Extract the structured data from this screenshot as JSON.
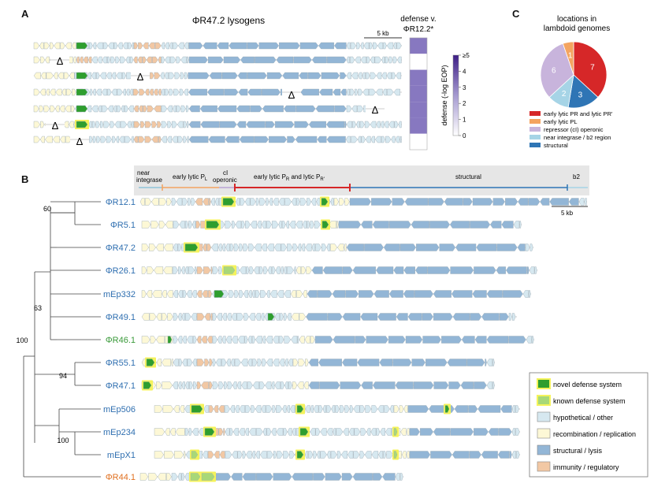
{
  "colors": {
    "novel": "#2e9e2e",
    "known": "#a8d878",
    "hypothetical": "#d6e8f0",
    "recombination": "#fdf8d6",
    "structural": "#93b6d6",
    "immunity": "#f2c8a4",
    "highlight": "#f4f35a",
    "early_lytic": "#d62728",
    "early_pl": "#f4a460",
    "repressor": "#c8b4dc",
    "near_integrase": "#a6d4e6",
    "structural_pie": "#2f75b5",
    "heat_high": "#8778c0"
  },
  "panel_a": {
    "letter": "A",
    "title": "ΦR47.2 lysogens",
    "scale": "5 kb",
    "delta": "Δ",
    "defense_title_line1": "defense v.",
    "defense_title_line2": "ΦR12.2*",
    "colorbar_ticks": [
      "≥5",
      "4",
      "3",
      "2",
      "1",
      "0"
    ],
    "colorbar_label": "defense (-log EOP)",
    "heat_values": [
      5,
      0,
      5,
      5,
      5,
      5,
      0
    ]
  },
  "panel_b": {
    "letter": "B",
    "regions": [
      "near integrase",
      "early lytic PL",
      "cI operonic",
      "early lytic PR and lytic PR'",
      "structural",
      "b2"
    ],
    "scale": "5 kb",
    "bootstrap": [
      "60",
      "63",
      "100",
      "94",
      "100"
    ],
    "phages": [
      {
        "name": "ΦR12.1",
        "color": "#2f6fb0"
      },
      {
        "name": "ΦR5.1",
        "color": "#2f6fb0"
      },
      {
        "name": "ΦR47.2",
        "color": "#2f6fb0"
      },
      {
        "name": "ΦR26.1",
        "color": "#2f6fb0"
      },
      {
        "name": "mEp332",
        "color": "#2f6fb0"
      },
      {
        "name": "ΦR49.1",
        "color": "#2f6fb0"
      },
      {
        "name": "ΦR46.1",
        "color": "#3a9a3a"
      },
      {
        "name": "ΦR55.1",
        "color": "#2f6fb0"
      },
      {
        "name": "ΦR47.1",
        "color": "#2f6fb0"
      },
      {
        "name": "mEp506",
        "color": "#2f6fb0"
      },
      {
        "name": "mEp234",
        "color": "#2f6fb0"
      },
      {
        "name": "mEpX1",
        "color": "#2f6fb0"
      },
      {
        "name": "ΦR44.1",
        "color": "#e07020"
      }
    ],
    "legend": [
      "novel defense system",
      "known defense system",
      "hypothetical / other",
      "recombination / replication",
      "structural / lysis",
      "immunity / regulatory"
    ]
  },
  "chart_data": {
    "type": "pie",
    "title": "locations in lambdoid genomes",
    "categories": [
      "early lytic PR and lytic PR'",
      "early lytic PL",
      "repressor (cI) operonic",
      "near integrase / b2 region",
      "structural"
    ],
    "values": [
      7,
      1,
      6,
      2,
      3
    ],
    "colors": [
      "#d62728",
      "#f4a460",
      "#c8b4dc",
      "#a6d4e6",
      "#2f75b5"
    ]
  },
  "panel_c": {
    "letter": "C"
  }
}
